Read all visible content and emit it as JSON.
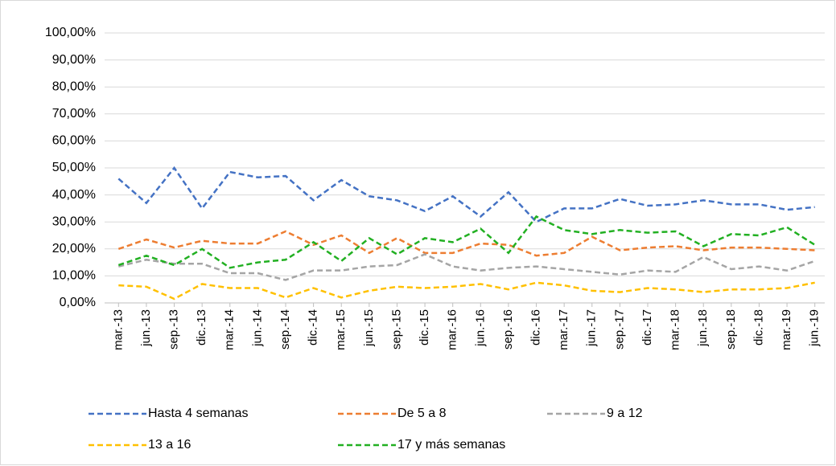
{
  "chart_data": {
    "type": "line",
    "categories": [
      "mar.-13",
      "jun.-13",
      "sep.-13",
      "dic.-13",
      "mar.-14",
      "jun.-14",
      "sep.-14",
      "dic.-14",
      "mar.-15",
      "jun.-15",
      "sep.-15",
      "dic.-15",
      "mar.-16",
      "jun.-16",
      "sep.-16",
      "dic.-16",
      "mar.-17",
      "jun.-17",
      "sep.-17",
      "dic.-17",
      "mar.-18",
      "jun.-18",
      "sep.-18",
      "dic.-18",
      "mar.-19",
      "jun.-19"
    ],
    "series": [
      {
        "name": "Hasta 4 semanas",
        "color": "#4472c4",
        "values": [
          46,
          37,
          50,
          35,
          48.5,
          46.5,
          47,
          38,
          45.5,
          39.5,
          38,
          34,
          39.5,
          32,
          41,
          30,
          35,
          35,
          38.5,
          36,
          36.5,
          38,
          36.5,
          36.5,
          34.5,
          35.5
        ]
      },
      {
        "name": "De 5 a 8",
        "color": "#ed7d31",
        "values": [
          20,
          23.5,
          20.5,
          23,
          22,
          22,
          26.5,
          21.5,
          25,
          18.5,
          24,
          18.5,
          18.5,
          22,
          21.5,
          17.5,
          18.5,
          24.5,
          19.5,
          20.5,
          21,
          19.5,
          20.5,
          20.5,
          20,
          19.5
        ]
      },
      {
        "name": "9 a 12",
        "color": "#a5a5a5",
        "values": [
          13.5,
          16,
          14.5,
          14.5,
          11,
          11,
          8.5,
          12,
          12,
          13.5,
          14,
          18,
          13.5,
          12,
          13,
          13.5,
          12.5,
          11.5,
          10.5,
          12,
          11.5,
          17,
          12.5,
          13.5,
          12,
          15.5
        ]
      },
      {
        "name": "13 a 16",
        "color": "#ffc000",
        "values": [
          6.5,
          6,
          1.5,
          7,
          5.5,
          5.5,
          2,
          5.5,
          2,
          4.5,
          6,
          5.5,
          6,
          7,
          5,
          7.5,
          6.5,
          4.5,
          4,
          5.5,
          5,
          4,
          5,
          5,
          5.5,
          7.5
        ]
      },
      {
        "name": "17 y más semanas",
        "color": "#22b022",
        "values": [
          14,
          17.5,
          14,
          20,
          13,
          15,
          16,
          22.5,
          15.5,
          24,
          18,
          24,
          22.5,
          27.5,
          18.5,
          32,
          27,
          25.5,
          27,
          26,
          26.5,
          21,
          25.5,
          25,
          28,
          21.5
        ]
      }
    ],
    "ylim": [
      0,
      100
    ],
    "yticks": [
      {
        "value": 0,
        "label": "0,00%"
      },
      {
        "value": 10,
        "label": "10,00%"
      },
      {
        "value": 20,
        "label": "20,00%"
      },
      {
        "value": 30,
        "label": "30,00%"
      },
      {
        "value": 40,
        "label": "40,00%"
      },
      {
        "value": 50,
        "label": "50,00%"
      },
      {
        "value": 60,
        "label": "60,00%"
      },
      {
        "value": 70,
        "label": "70,00%"
      },
      {
        "value": 80,
        "label": "80,00%"
      },
      {
        "value": 90,
        "label": "90,00%"
      },
      {
        "value": 100,
        "label": "100,00%"
      }
    ],
    "grid": true,
    "legend": "bottom",
    "line_style": "dashed"
  }
}
